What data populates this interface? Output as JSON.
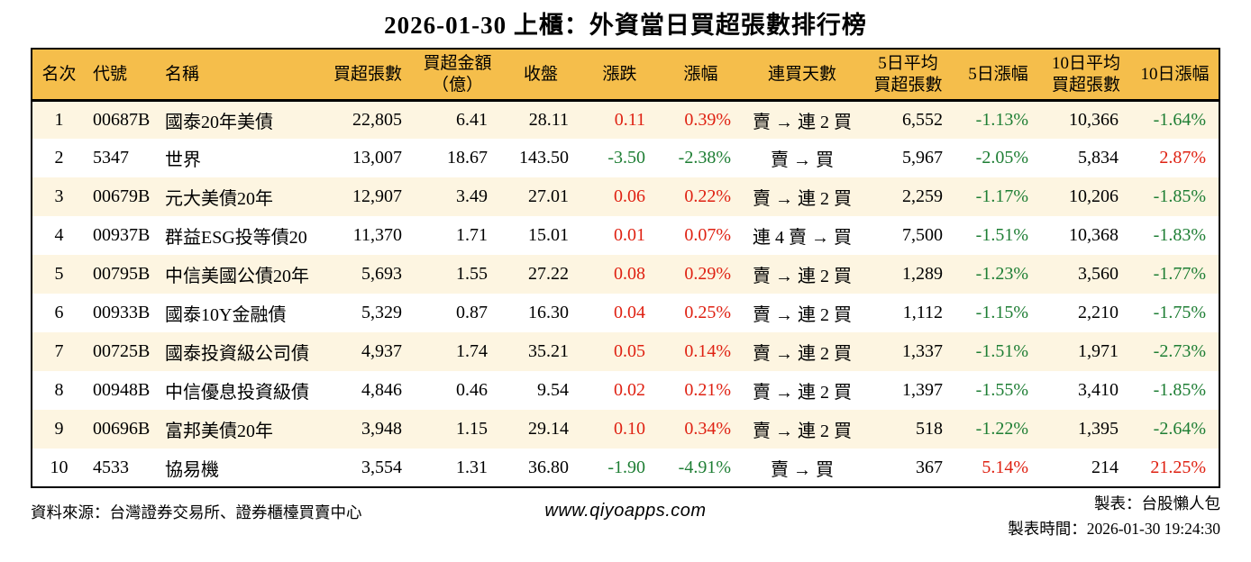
{
  "title": "2026-01-30 上櫃：外資當日買超張數排行榜",
  "colors": {
    "header_bg": "#F5BE4B",
    "row_stripe": "#FDF5E1",
    "up_red": "#DF2112",
    "down_green": "#1E7E34"
  },
  "chart_data": {
    "type": "table",
    "title": "2026-01-30 上櫃：外資當日買超張數排行榜",
    "columns": [
      "名次",
      "代號",
      "名稱",
      "買超張數",
      "買超金額\n（億）",
      "收盤",
      "漲跌",
      "漲幅",
      "連買天數",
      "5日平均\n買超張數",
      "5日漲幅",
      "10日平均\n買超張數",
      "10日漲幅"
    ],
    "rows": [
      [
        "1",
        "00687B",
        "國泰20年美債",
        "22,805",
        "6.41",
        "28.11",
        "0.11",
        "0.39%",
        "賣 → 連 2 買",
        "6,552",
        "-1.13%",
        "10,366",
        "-1.64%"
      ],
      [
        "2",
        "5347",
        "世界",
        "13,007",
        "18.67",
        "143.50",
        "-3.50",
        "-2.38%",
        "賣 → 買",
        "5,967",
        "-2.05%",
        "5,834",
        "2.87%"
      ],
      [
        "3",
        "00679B",
        "元大美債20年",
        "12,907",
        "3.49",
        "27.01",
        "0.06",
        "0.22%",
        "賣 → 連 2 買",
        "2,259",
        "-1.17%",
        "10,206",
        "-1.85%"
      ],
      [
        "4",
        "00937B",
        "群益ESG投等債20",
        "11,370",
        "1.71",
        "15.01",
        "0.01",
        "0.07%",
        "連 4 賣 → 買",
        "7,500",
        "-1.51%",
        "10,368",
        "-1.83%"
      ],
      [
        "5",
        "00795B",
        "中信美國公債20年",
        "5,693",
        "1.55",
        "27.22",
        "0.08",
        "0.29%",
        "賣 → 連 2 買",
        "1,289",
        "-1.23%",
        "3,560",
        "-1.77%"
      ],
      [
        "6",
        "00933B",
        "國泰10Y金融債",
        "5,329",
        "0.87",
        "16.30",
        "0.04",
        "0.25%",
        "賣 → 連 2 買",
        "1,112",
        "-1.15%",
        "2,210",
        "-1.75%"
      ],
      [
        "7",
        "00725B",
        "國泰投資級公司債",
        "4,937",
        "1.74",
        "35.21",
        "0.05",
        "0.14%",
        "賣 → 連 2 買",
        "1,337",
        "-1.51%",
        "1,971",
        "-2.73%"
      ],
      [
        "8",
        "00948B",
        "中信優息投資級債",
        "4,846",
        "0.46",
        "9.54",
        "0.02",
        "0.21%",
        "賣 → 連 2 買",
        "1,397",
        "-1.55%",
        "3,410",
        "-1.85%"
      ],
      [
        "9",
        "00696B",
        "富邦美債20年",
        "3,948",
        "1.15",
        "29.14",
        "0.10",
        "0.34%",
        "賣 → 連 2 買",
        "518",
        "-1.22%",
        "1,395",
        "-2.64%"
      ],
      [
        "10",
        "4533",
        "協易機",
        "3,554",
        "1.31",
        "36.80",
        "-1.90",
        "-4.91%",
        "賣 → 買",
        "367",
        "5.14%",
        "214",
        "21.25%"
      ]
    ],
    "legend": "red = rise, green = fall (Taiwan market convention)"
  },
  "footer": {
    "source": "資料來源：台灣證券交易所、證券櫃檯買賣中心",
    "website": "www.qiyoapps.com",
    "maker": "製表：台股懶人包",
    "made_at": "製表時間：2026-01-30 19:24:30"
  }
}
